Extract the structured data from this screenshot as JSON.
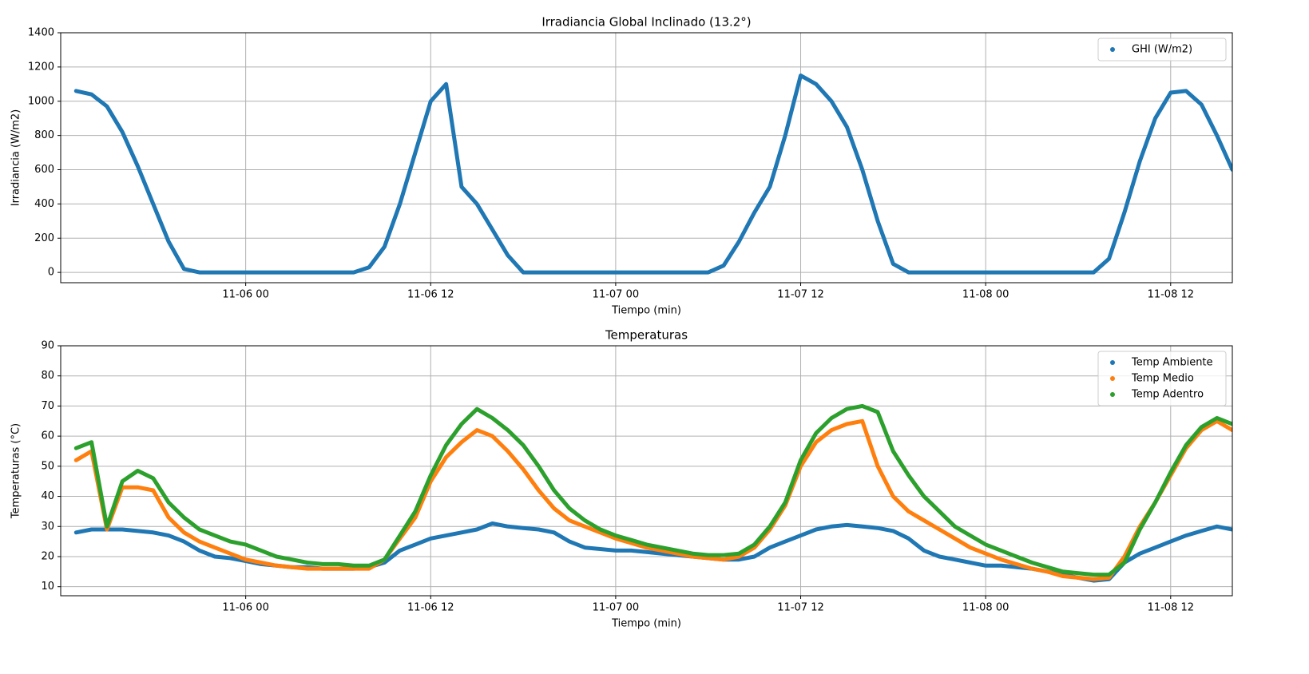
{
  "chart_data": [
    {
      "type": "scatter",
      "title": "Irradiancia Global Inclinado (13.2°)",
      "xlabel": "Tiempo (min)",
      "ylabel": "Irradiancia (W/m2)",
      "x": [
        "11-05 13",
        "11-05 14",
        "11-05 15",
        "11-05 16",
        "11-05 17",
        "11-05 18",
        "11-05 19",
        "11-05 20",
        "11-05 21",
        "11-05 22",
        "11-05 23",
        "11-06 00",
        "11-06 01",
        "11-06 02",
        "11-06 03",
        "11-06 04",
        "11-06 05",
        "11-06 06",
        "11-06 07",
        "11-06 08",
        "11-06 09",
        "11-06 10",
        "11-06 11",
        "11-06 12",
        "11-06 13",
        "11-06 14",
        "11-06 15",
        "11-06 16",
        "11-06 17",
        "11-06 18",
        "11-06 19",
        "11-06 20",
        "11-06 21",
        "11-06 22",
        "11-06 23",
        "11-07 00",
        "11-07 01",
        "11-07 02",
        "11-07 03",
        "11-07 04",
        "11-07 05",
        "11-07 06",
        "11-07 07",
        "11-07 08",
        "11-07 09",
        "11-07 10",
        "11-07 11",
        "11-07 12",
        "11-07 13",
        "11-07 14",
        "11-07 15",
        "11-07 16",
        "11-07 17",
        "11-07 18",
        "11-07 19",
        "11-07 20",
        "11-07 21",
        "11-07 22",
        "11-07 23",
        "11-08 00",
        "11-08 01",
        "11-08 02",
        "11-08 03",
        "11-08 04",
        "11-08 05",
        "11-08 06",
        "11-08 07",
        "11-08 08",
        "11-08 09",
        "11-08 10",
        "11-08 11",
        "11-08 12",
        "11-08 13",
        "11-08 14",
        "11-08 15",
        "11-08 16"
      ],
      "series": [
        {
          "name": "GHI (W/m2)",
          "color": "#1f77b4",
          "values": [
            1060,
            1040,
            970,
            820,
            620,
            400,
            180,
            20,
            0,
            0,
            0,
            0,
            0,
            0,
            0,
            0,
            0,
            0,
            0,
            30,
            150,
            400,
            700,
            1000,
            1100,
            500,
            400,
            250,
            100,
            0,
            0,
            0,
            0,
            0,
            0,
            0,
            0,
            0,
            0,
            0,
            0,
            0,
            40,
            180,
            350,
            500,
            800,
            1150,
            1100,
            1000,
            850,
            600,
            300,
            50,
            0,
            0,
            0,
            0,
            0,
            0,
            0,
            0,
            0,
            0,
            0,
            0,
            0,
            80,
            350,
            650,
            900,
            1050,
            1060,
            980,
            800,
            600
          ]
        }
      ],
      "xlim": [
        "11-05 12",
        "11-08 16"
      ],
      "xticks": [
        "11-06 00",
        "11-06 12",
        "11-07 00",
        "11-07 12",
        "11-08 00",
        "11-08 12"
      ],
      "ylim": [
        -60,
        1400
      ],
      "yticks": [
        0,
        200,
        400,
        600,
        800,
        1000,
        1200,
        1400
      ],
      "grid": true,
      "legend": "upper right"
    },
    {
      "type": "scatter",
      "title": "Temperaturas",
      "xlabel": "Tiempo (min)",
      "ylabel": "Temperaturas (°C)",
      "x": [
        "11-05 13",
        "11-05 14",
        "11-05 15",
        "11-05 16",
        "11-05 17",
        "11-05 18",
        "11-05 19",
        "11-05 20",
        "11-05 21",
        "11-05 22",
        "11-05 23",
        "11-06 00",
        "11-06 01",
        "11-06 02",
        "11-06 03",
        "11-06 04",
        "11-06 05",
        "11-06 06",
        "11-06 07",
        "11-06 08",
        "11-06 09",
        "11-06 10",
        "11-06 11",
        "11-06 12",
        "11-06 13",
        "11-06 14",
        "11-06 15",
        "11-06 16",
        "11-06 17",
        "11-06 18",
        "11-06 19",
        "11-06 20",
        "11-06 21",
        "11-06 22",
        "11-06 23",
        "11-07 00",
        "11-07 01",
        "11-07 02",
        "11-07 03",
        "11-07 04",
        "11-07 05",
        "11-07 06",
        "11-07 07",
        "11-07 08",
        "11-07 09",
        "11-07 10",
        "11-07 11",
        "11-07 12",
        "11-07 13",
        "11-07 14",
        "11-07 15",
        "11-07 16",
        "11-07 17",
        "11-07 18",
        "11-07 19",
        "11-07 20",
        "11-07 21",
        "11-07 22",
        "11-07 23",
        "11-08 00",
        "11-08 01",
        "11-08 02",
        "11-08 03",
        "11-08 04",
        "11-08 05",
        "11-08 06",
        "11-08 07",
        "11-08 08",
        "11-08 09",
        "11-08 10",
        "11-08 11",
        "11-08 12",
        "11-08 13",
        "11-08 14",
        "11-08 15",
        "11-08 16"
      ],
      "series": [
        {
          "name": "Temp Ambiente",
          "color": "#1f77b4",
          "values": [
            28,
            29,
            29,
            29,
            28.5,
            28,
            27,
            25,
            22,
            20,
            19.5,
            18.5,
            17.5,
            17,
            16.5,
            16.5,
            16,
            16,
            16,
            16.5,
            18,
            22,
            24,
            26,
            27,
            28,
            29,
            31,
            30,
            29.5,
            29,
            28,
            25,
            23,
            22.5,
            22,
            22,
            21.5,
            21,
            20.5,
            20,
            19.5,
            19,
            19,
            20,
            23,
            25,
            27,
            29,
            30,
            30.5,
            30,
            29.5,
            28.5,
            26,
            22,
            20,
            19,
            18,
            17,
            17,
            16.5,
            16,
            15,
            14,
            13,
            12,
            12.5,
            18,
            21,
            23,
            25,
            27,
            28.5,
            30,
            29
          ]
        },
        {
          "name": "Temp Medio",
          "color": "#ff7f0e",
          "values": [
            52,
            55,
            29,
            43,
            43,
            42,
            33,
            28,
            25,
            23,
            21,
            19,
            18,
            17,
            16.5,
            16,
            16,
            16,
            16,
            16,
            19,
            26,
            33,
            45,
            53,
            58,
            62,
            60,
            55,
            49,
            42,
            36,
            32,
            30,
            28,
            26,
            24.5,
            23,
            22,
            21,
            20,
            19.5,
            19,
            20,
            23,
            29,
            37,
            50,
            58,
            62,
            64,
            65,
            50,
            40,
            35,
            32,
            29,
            26,
            23,
            21,
            19,
            17.5,
            16,
            15,
            13.5,
            13,
            12.5,
            13,
            20,
            30,
            38,
            47,
            56,
            62,
            65,
            62
          ]
        },
        {
          "name": "Temp Adentro",
          "color": "#2ca02c",
          "values": [
            56,
            58,
            30,
            45,
            48.5,
            46,
            38,
            33,
            29,
            27,
            25,
            24,
            22,
            20,
            19,
            18,
            17.5,
            17.5,
            17,
            17,
            19,
            27,
            35,
            47,
            57,
            64,
            69,
            66,
            62,
            57,
            50,
            42,
            36,
            32,
            29,
            27,
            25.5,
            24,
            23,
            22,
            21,
            20.5,
            20.5,
            21,
            24,
            30,
            38,
            52,
            61,
            66,
            69,
            70,
            68,
            55,
            47,
            40,
            35,
            30,
            27,
            24,
            22,
            20,
            18,
            16.5,
            15,
            14.5,
            14,
            14,
            18,
            29,
            38,
            48,
            57,
            63,
            66,
            64
          ]
        }
      ],
      "xlim": [
        "11-05 12",
        "11-08 16"
      ],
      "xticks": [
        "11-06 00",
        "11-06 12",
        "11-07 00",
        "11-07 12",
        "11-08 00",
        "11-08 12"
      ],
      "ylim": [
        7,
        90
      ],
      "yticks": [
        10,
        20,
        30,
        40,
        50,
        60,
        70,
        80,
        90
      ],
      "grid": true,
      "legend": "upper right"
    }
  ]
}
